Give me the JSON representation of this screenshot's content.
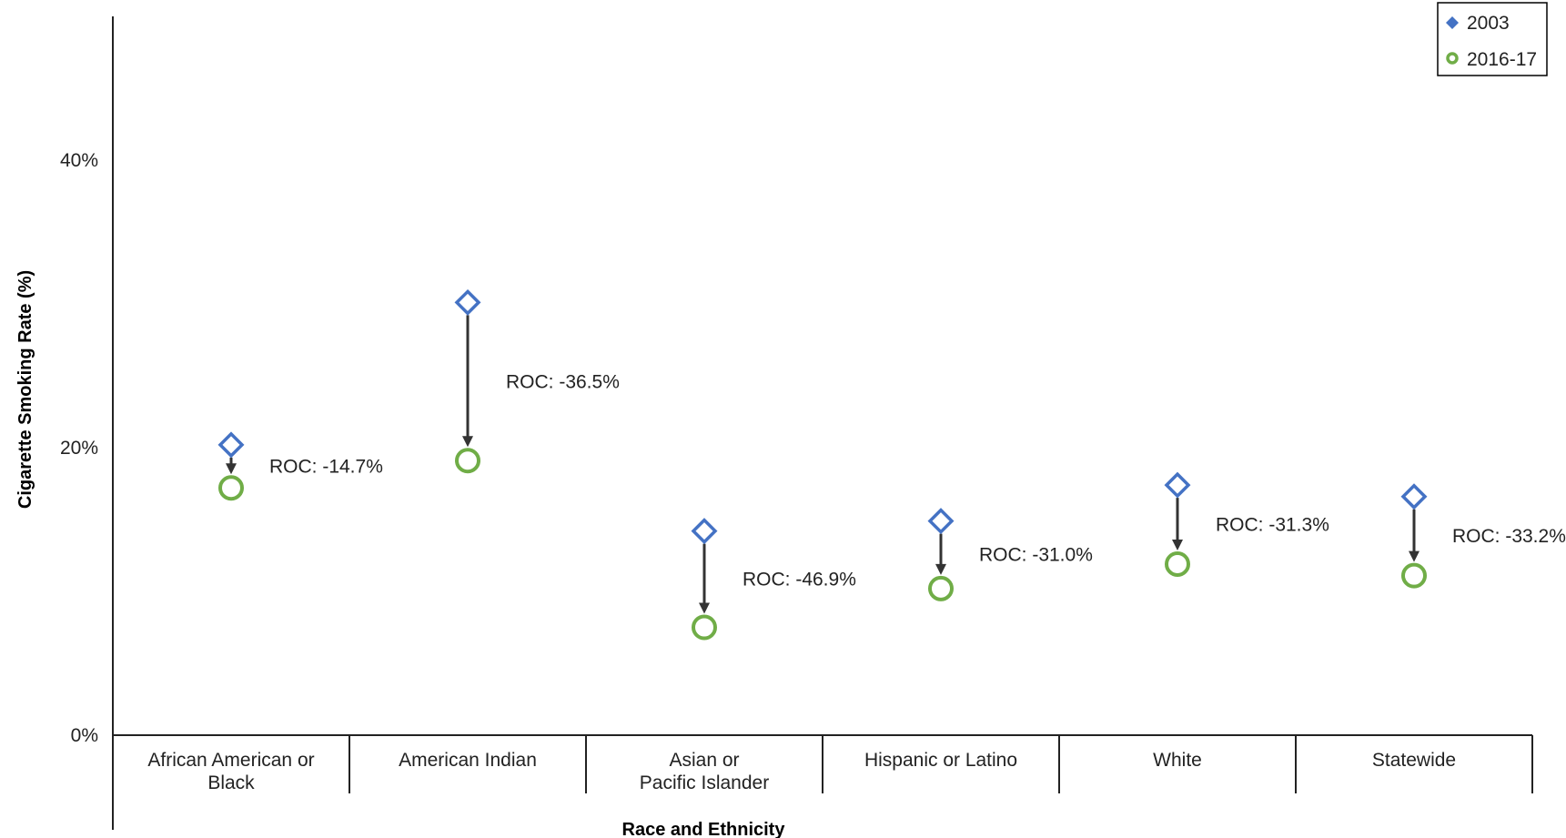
{
  "chart_data": {
    "type": "scatter",
    "categories": [
      "African American or Black",
      "American Indian",
      "Asian or Pacific Islander",
      "Hispanic or Latino",
      "White",
      "Statewide"
    ],
    "category_lines": [
      [
        "African American or",
        "Black"
      ],
      [
        "American Indian"
      ],
      [
        "Asian or",
        "Pacific Islander"
      ],
      [
        "Hispanic or Latino"
      ],
      [
        "White"
      ],
      [
        "Statewide"
      ]
    ],
    "series": [
      {
        "name": "2003",
        "values": [
          20.2,
          30.1,
          14.2,
          14.9,
          17.4,
          16.6
        ],
        "color": "#4472C4",
        "marker": "diamond"
      },
      {
        "name": "2016-17",
        "values": [
          17.2,
          19.1,
          7.5,
          10.2,
          11.9,
          11.1
        ],
        "color": "#70AD47",
        "marker": "circle"
      }
    ],
    "annotations": [
      "ROC: -14.7%",
      "ROC: -36.5%",
      "ROC: -46.9%",
      "ROC: -31.0%",
      "ROC: -31.3%",
      "ROC: -33.2%"
    ],
    "ylabel": "Cigarette Smoking Rate (%)",
    "xlabel": "Race and Ethnicity",
    "y_ticks": [
      0,
      20,
      40
    ],
    "y_tick_labels": [
      "0%",
      "20%",
      "40%"
    ],
    "ylim": [
      0,
      50
    ],
    "grid": false,
    "legend_position": "top-right"
  }
}
